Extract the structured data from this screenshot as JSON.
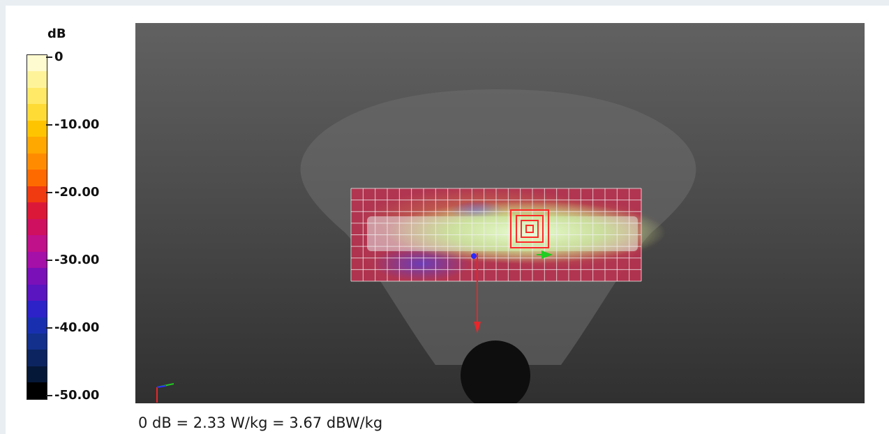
{
  "legend": {
    "unit": "dB",
    "ticks": [
      "0",
      "-10.00",
      "-20.00",
      "-30.00",
      "-40.00",
      "-50.00"
    ],
    "colors": [
      "#fffbd0",
      "#fff39a",
      "#ffe967",
      "#ffdb36",
      "#ffc400",
      "#ffa800",
      "#ff8c00",
      "#ff6a00",
      "#f03a10",
      "#dc1838",
      "#cf1060",
      "#c0108a",
      "#a410a8",
      "#7a10b8",
      "#5a14c0",
      "#2c22c8",
      "#1830b0",
      "#12308c",
      "#0c2560",
      "#061838",
      "#000000"
    ]
  },
  "caption": "0 dB = 2.33 W/kg = 3.67 dBW/kg",
  "scene": {
    "phantom_color": "#6d6d6d",
    "grid_fill": "#b8324f",
    "hotspot_color": "#c8ee9c"
  }
}
